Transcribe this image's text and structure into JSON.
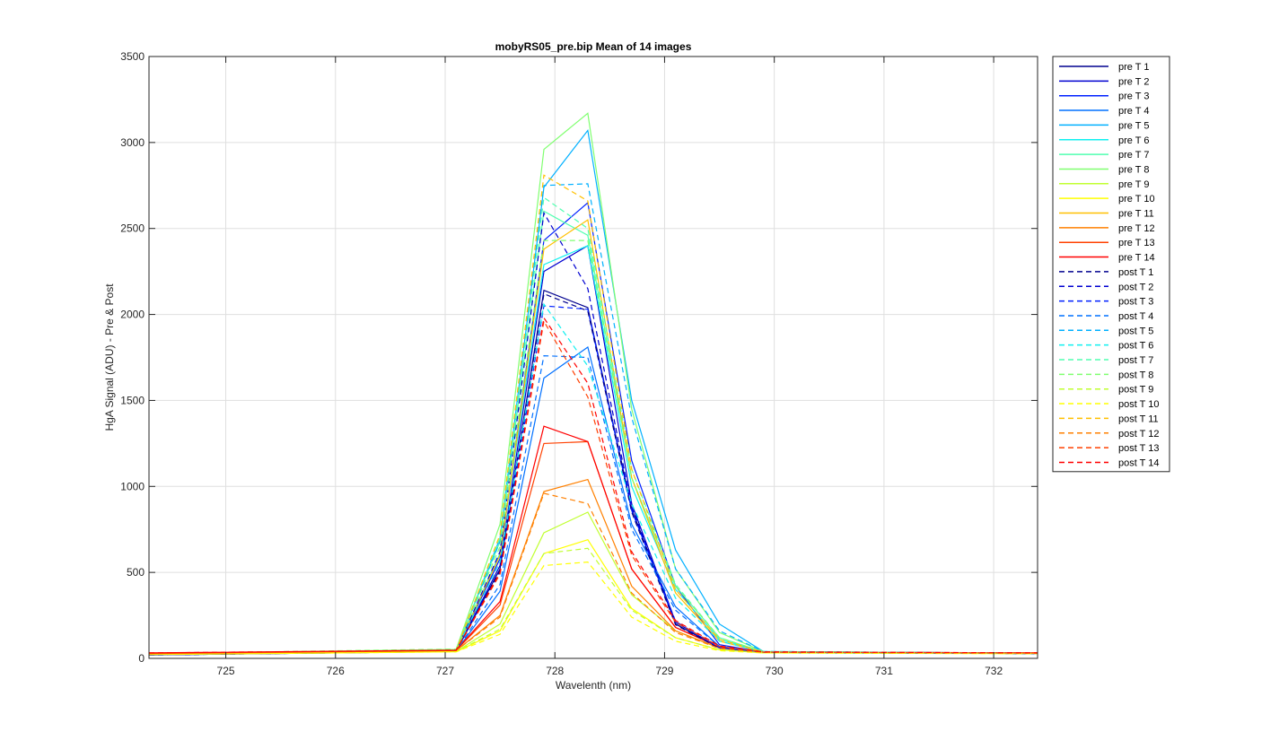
{
  "chart_data": {
    "type": "line",
    "title": "mobyRS05_pre.bip  Mean of 14 images",
    "xlabel": "Wavelenth (nm)",
    "ylabel": "HgA Signal (ADU) - Pre & Post",
    "xlim": [
      724.3,
      732.4
    ],
    "ylim": [
      0,
      3500
    ],
    "xticks": [
      725,
      726,
      727,
      728,
      729,
      730,
      731,
      732
    ],
    "yticks": [
      0,
      500,
      1000,
      1500,
      2000,
      2500,
      3000,
      3500
    ],
    "grid": true,
    "legend_position": "outside-right",
    "x": [
      724.3,
      727.1,
      727.5,
      727.9,
      728.3,
      728.7,
      729.1,
      729.5,
      729.9,
      732.4
    ],
    "series": [
      {
        "name": "pre T 1",
        "style": "solid",
        "color": "#00008f",
        "values": [
          20,
          40,
          520,
          2140,
          2040,
          870,
          200,
          60,
          35,
          28
        ]
      },
      {
        "name": "pre T 2",
        "style": "solid",
        "color": "#0000d0",
        "values": [
          20,
          40,
          540,
          2250,
          2400,
          900,
          210,
          62,
          35,
          28
        ]
      },
      {
        "name": "pre T 3",
        "style": "solid",
        "color": "#0020ff",
        "values": [
          22,
          42,
          580,
          2430,
          2650,
          1150,
          420,
          80,
          36,
          28
        ]
      },
      {
        "name": "pre T 4",
        "style": "solid",
        "color": "#0070ff",
        "values": [
          22,
          42,
          390,
          1630,
          1810,
          780,
          300,
          70,
          35,
          28
        ]
      },
      {
        "name": "pre T 5",
        "style": "solid",
        "color": "#00b0ff",
        "values": [
          24,
          45,
          700,
          2740,
          3070,
          1500,
          630,
          200,
          40,
          30
        ]
      },
      {
        "name": "pre T 6",
        "style": "solid",
        "color": "#10f0f0",
        "values": [
          25,
          48,
          610,
          2290,
          2400,
          1000,
          400,
          110,
          38,
          30
        ]
      },
      {
        "name": "pre T 7",
        "style": "solid",
        "color": "#50ffb0",
        "values": [
          26,
          50,
          680,
          2600,
          2460,
          1050,
          420,
          120,
          38,
          30
        ]
      },
      {
        "name": "pre T 8",
        "style": "solid",
        "color": "#80ff70",
        "values": [
          28,
          52,
          780,
          2960,
          3170,
          1450,
          520,
          150,
          40,
          30
        ]
      },
      {
        "name": "pre T 9",
        "style": "solid",
        "color": "#c0ff30",
        "values": [
          24,
          40,
          200,
          730,
          850,
          370,
          160,
          60,
          34,
          28
        ]
      },
      {
        "name": "pre T 10",
        "style": "solid",
        "color": "#ffff00",
        "values": [
          22,
          38,
          160,
          610,
          690,
          290,
          120,
          50,
          32,
          27
        ]
      },
      {
        "name": "pre T 11",
        "style": "solid",
        "color": "#ffc000",
        "values": [
          26,
          45,
          600,
          2380,
          2550,
          1050,
          380,
          100,
          37,
          29
        ]
      },
      {
        "name": "pre T 12",
        "style": "solid",
        "color": "#ff8000",
        "values": [
          28,
          45,
          250,
          970,
          1040,
          420,
          160,
          60,
          35,
          30
        ]
      },
      {
        "name": "pre T 13",
        "style": "solid",
        "color": "#ff4000",
        "values": [
          30,
          46,
          310,
          1250,
          1260,
          520,
          180,
          65,
          36,
          32
        ]
      },
      {
        "name": "pre T 14",
        "style": "solid",
        "color": "#ff0000",
        "values": [
          32,
          48,
          330,
          1350,
          1260,
          520,
          180,
          66,
          38,
          32
        ]
      },
      {
        "name": "post T 1",
        "style": "dashed",
        "color": "#00008f",
        "values": [
          20,
          40,
          510,
          2120,
          2020,
          850,
          195,
          58,
          35,
          28
        ]
      },
      {
        "name": "post T 2",
        "style": "dashed",
        "color": "#0000d0",
        "values": [
          20,
          42,
          620,
          2590,
          2150,
          880,
          215,
          62,
          35,
          28
        ]
      },
      {
        "name": "post T 3",
        "style": "dashed",
        "color": "#0020ff",
        "values": [
          22,
          42,
          500,
          2050,
          2030,
          860,
          210,
          62,
          35,
          28
        ]
      },
      {
        "name": "post T 4",
        "style": "dashed",
        "color": "#0070ff",
        "values": [
          22,
          42,
          430,
          1760,
          1750,
          750,
          280,
          70,
          35,
          28
        ]
      },
      {
        "name": "post T 5",
        "style": "dashed",
        "color": "#00b0ff",
        "values": [
          24,
          46,
          680,
          2750,
          2760,
          1400,
          520,
          160,
          40,
          30
        ]
      },
      {
        "name": "post T 6",
        "style": "dashed",
        "color": "#10f0f0",
        "values": [
          25,
          50,
          560,
          2060,
          1700,
          900,
          350,
          100,
          38,
          30
        ]
      },
      {
        "name": "post T 7",
        "style": "dashed",
        "color": "#50ffb0",
        "values": [
          26,
          52,
          700,
          2680,
          2500,
          1100,
          430,
          120,
          38,
          30
        ]
      },
      {
        "name": "post T 8",
        "style": "dashed",
        "color": "#80ff70",
        "values": [
          28,
          54,
          650,
          2430,
          2430,
          1050,
          420,
          120,
          38,
          30
        ]
      },
      {
        "name": "post T 9",
        "style": "dashed",
        "color": "#c0ff30",
        "values": [
          24,
          40,
          170,
          610,
          640,
          280,
          120,
          50,
          33,
          28
        ]
      },
      {
        "name": "post T 10",
        "style": "dashed",
        "color": "#ffff00",
        "values": [
          22,
          38,
          140,
          540,
          560,
          240,
          100,
          45,
          32,
          27
        ]
      },
      {
        "name": "post T 11",
        "style": "dashed",
        "color": "#ffc000",
        "values": [
          26,
          46,
          720,
          2810,
          2660,
          1100,
          400,
          110,
          37,
          29
        ]
      },
      {
        "name": "post T 12",
        "style": "dashed",
        "color": "#ff8000",
        "values": [
          28,
          45,
          240,
          960,
          900,
          380,
          150,
          58,
          35,
          30
        ]
      },
      {
        "name": "post T 13",
        "style": "dashed",
        "color": "#ff4000",
        "values": [
          30,
          46,
          490,
          1960,
          1520,
          600,
          210,
          70,
          36,
          32
        ]
      },
      {
        "name": "post T 14",
        "style": "dashed",
        "color": "#ff0000",
        "values": [
          32,
          48,
          500,
          1980,
          1600,
          620,
          220,
          72,
          38,
          32
        ]
      }
    ]
  }
}
